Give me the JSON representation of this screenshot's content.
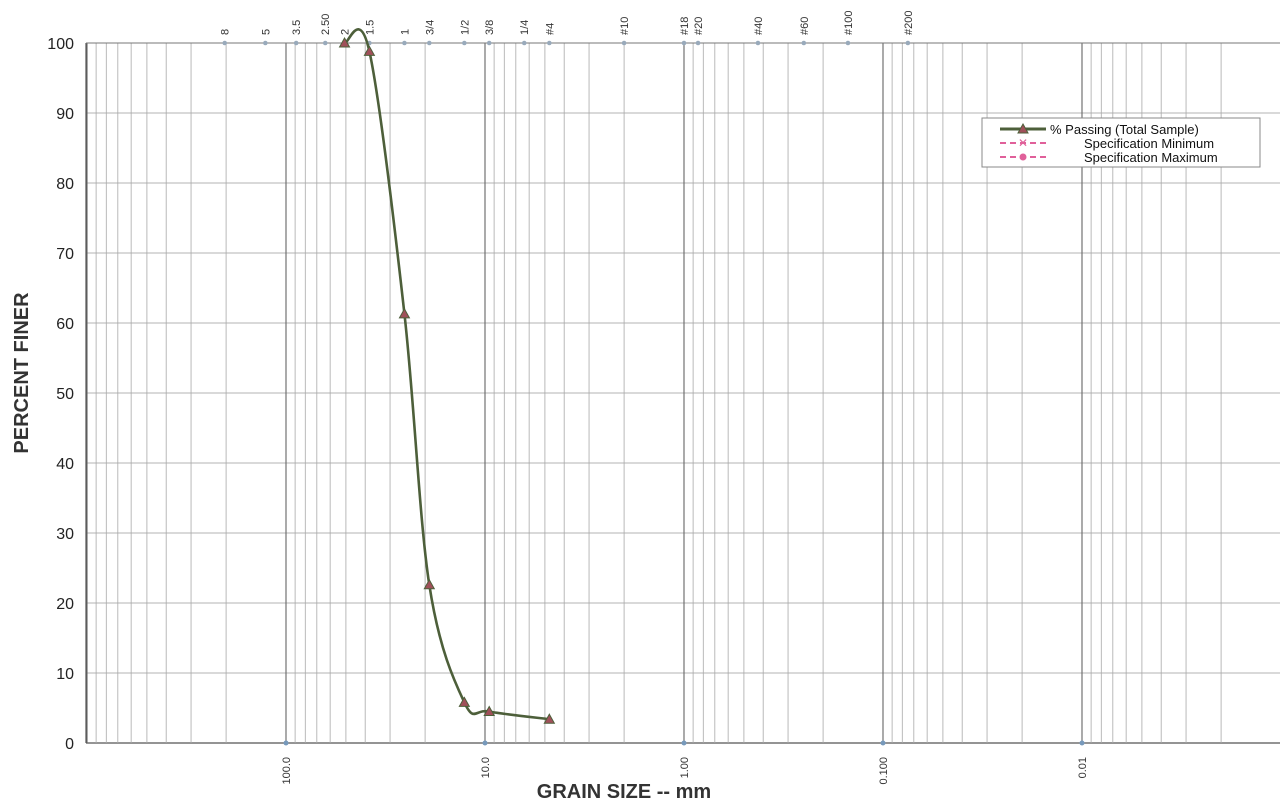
{
  "chart_data": {
    "type": "line",
    "title": "",
    "xlabel": "GRAIN SIZE -- mm",
    "ylabel": "PERCENT FINER",
    "x_scale": "log",
    "x_reversed": true,
    "xlim": [
      1000,
      0.001
    ],
    "ylim": [
      0,
      100
    ],
    "y_ticks": [
      "0",
      "10",
      "20",
      "30",
      "40",
      "50",
      "60",
      "70",
      "80",
      "90",
      "100"
    ],
    "x_ticks": [
      {
        "value": 100,
        "label": "100.0"
      },
      {
        "value": 10,
        "label": "10.0"
      },
      {
        "value": 1,
        "label": "1.00"
      },
      {
        "value": 0.1,
        "label": "0.100"
      },
      {
        "value": 0.01,
        "label": "0.01"
      }
    ],
    "sieve_sizes": [
      {
        "label": "8",
        "mm": 203.2
      },
      {
        "label": "5",
        "mm": 127
      },
      {
        "label": "3.5",
        "mm": 88.9
      },
      {
        "label": "2.50",
        "mm": 63.5
      },
      {
        "label": "2",
        "mm": 50.8
      },
      {
        "label": "1.5",
        "mm": 38.1
      },
      {
        "label": "1",
        "mm": 25.4
      },
      {
        "label": "3/4",
        "mm": 19.05
      },
      {
        "label": "1/2",
        "mm": 12.7
      },
      {
        "label": "3/8",
        "mm": 9.525
      },
      {
        "label": "1/4",
        "mm": 6.35
      },
      {
        "label": "#4",
        "mm": 4.75
      },
      {
        "label": "#10",
        "mm": 2.0
      },
      {
        "label": "#18",
        "mm": 1.0
      },
      {
        "label": "#20",
        "mm": 0.85
      },
      {
        "label": "#40",
        "mm": 0.425
      },
      {
        "label": "#60",
        "mm": 0.25
      },
      {
        "label": "#100",
        "mm": 0.15
      },
      {
        "label": "#200",
        "mm": 0.075
      }
    ],
    "series": [
      {
        "name": "% Passing (Total Sample)",
        "color": "#4d5f3a",
        "marker": "triangle",
        "marker_color": "#a0505a",
        "x": [
          50.8,
          38.1,
          25.4,
          19.05,
          12.7,
          9.525,
          4.75
        ],
        "y": [
          100,
          98.8,
          61.3,
          22.6,
          5.8,
          4.5,
          3.4
        ]
      },
      {
        "name": "Specification Minimum",
        "color": "#e0609a",
        "marker": "x",
        "x": [],
        "y": []
      },
      {
        "name": "Specification Maximum",
        "color": "#e0609a",
        "marker": "circle",
        "x": [],
        "y": []
      }
    ],
    "grid": true,
    "legend_position": "top-right"
  }
}
